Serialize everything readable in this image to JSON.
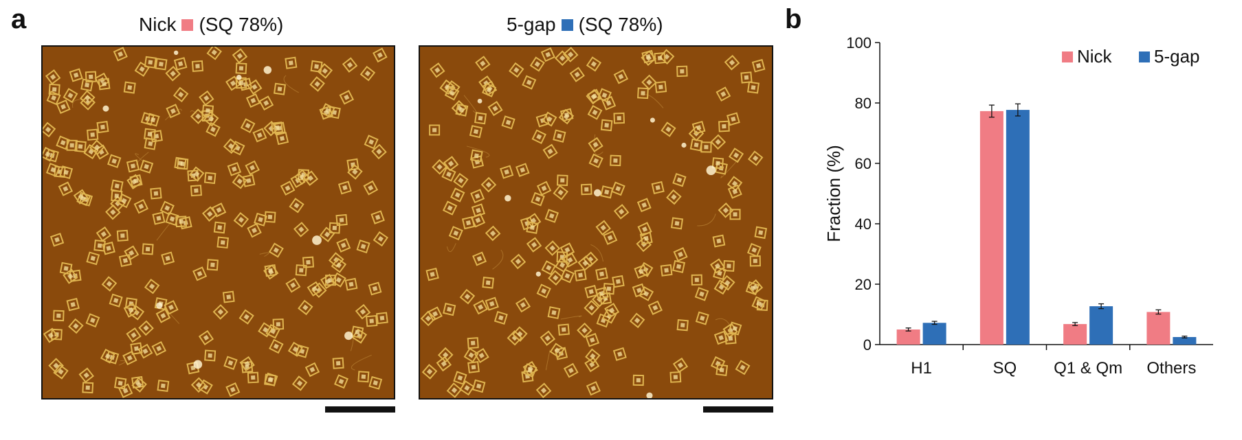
{
  "panels": {
    "a_label": "a",
    "b_label": "b"
  },
  "afm_images": [
    {
      "name": "Nick",
      "suffix": "(SQ 78%)",
      "color": "#f07c84"
    },
    {
      "name": "5-gap",
      "suffix": "(SQ 78%)",
      "color": "#2e6fb7"
    }
  ],
  "colors": {
    "afm_background": "#8a4a0c",
    "origami_tile": "#e0b550",
    "nick": "#f07c84",
    "gap": "#2e6fb7"
  },
  "chart_data": {
    "type": "bar",
    "title": "",
    "xlabel": "",
    "ylabel": "Fraction (%)",
    "ylim": [
      0,
      100
    ],
    "yticks": [
      0,
      20,
      40,
      60,
      80,
      100
    ],
    "categories": [
      "H1",
      "SQ",
      "Q1 & Qm",
      "Others"
    ],
    "series": [
      {
        "name": "Nick",
        "color": "#f07c84",
        "values": [
          5.0,
          77.3,
          6.8,
          10.8
        ],
        "errors": [
          0.5,
          2.0,
          0.5,
          0.7
        ]
      },
      {
        "name": "5-gap",
        "color": "#2e6fb7",
        "values": [
          7.2,
          77.7,
          12.7,
          2.5
        ],
        "errors": [
          0.5,
          2.0,
          0.8,
          0.3
        ]
      }
    ],
    "legend_position": "top-right",
    "grid": false,
    "error_bars": true
  }
}
